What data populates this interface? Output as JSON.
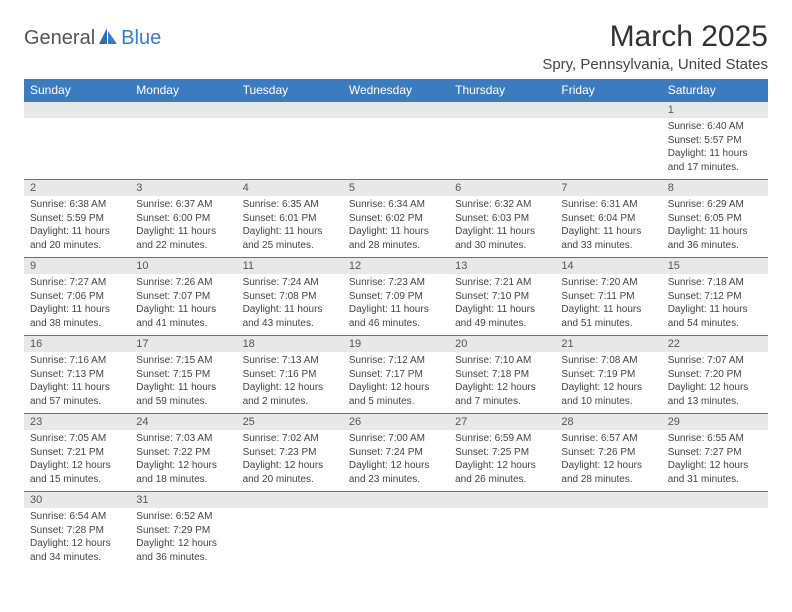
{
  "logo": {
    "part1": "General",
    "part2": "Blue"
  },
  "title": "March 2025",
  "location": "Spry, Pennsylvania, United States",
  "colors": {
    "header_bg": "#3b7bbf",
    "header_text": "#ffffff",
    "daynum_bg": "#e8e8e8",
    "border": "#3b7bbf",
    "logo_blue": "#3b7bbf",
    "logo_gray": "#555555"
  },
  "weekdays": [
    "Sunday",
    "Monday",
    "Tuesday",
    "Wednesday",
    "Thursday",
    "Friday",
    "Saturday"
  ],
  "weeks": [
    [
      null,
      null,
      null,
      null,
      null,
      null,
      {
        "n": "1",
        "sr": "Sunrise: 6:40 AM",
        "ss": "Sunset: 5:57 PM",
        "d1": "Daylight: 11 hours",
        "d2": "and 17 minutes."
      }
    ],
    [
      {
        "n": "2",
        "sr": "Sunrise: 6:38 AM",
        "ss": "Sunset: 5:59 PM",
        "d1": "Daylight: 11 hours",
        "d2": "and 20 minutes."
      },
      {
        "n": "3",
        "sr": "Sunrise: 6:37 AM",
        "ss": "Sunset: 6:00 PM",
        "d1": "Daylight: 11 hours",
        "d2": "and 22 minutes."
      },
      {
        "n": "4",
        "sr": "Sunrise: 6:35 AM",
        "ss": "Sunset: 6:01 PM",
        "d1": "Daylight: 11 hours",
        "d2": "and 25 minutes."
      },
      {
        "n": "5",
        "sr": "Sunrise: 6:34 AM",
        "ss": "Sunset: 6:02 PM",
        "d1": "Daylight: 11 hours",
        "d2": "and 28 minutes."
      },
      {
        "n": "6",
        "sr": "Sunrise: 6:32 AM",
        "ss": "Sunset: 6:03 PM",
        "d1": "Daylight: 11 hours",
        "d2": "and 30 minutes."
      },
      {
        "n": "7",
        "sr": "Sunrise: 6:31 AM",
        "ss": "Sunset: 6:04 PM",
        "d1": "Daylight: 11 hours",
        "d2": "and 33 minutes."
      },
      {
        "n": "8",
        "sr": "Sunrise: 6:29 AM",
        "ss": "Sunset: 6:05 PM",
        "d1": "Daylight: 11 hours",
        "d2": "and 36 minutes."
      }
    ],
    [
      {
        "n": "9",
        "sr": "Sunrise: 7:27 AM",
        "ss": "Sunset: 7:06 PM",
        "d1": "Daylight: 11 hours",
        "d2": "and 38 minutes."
      },
      {
        "n": "10",
        "sr": "Sunrise: 7:26 AM",
        "ss": "Sunset: 7:07 PM",
        "d1": "Daylight: 11 hours",
        "d2": "and 41 minutes."
      },
      {
        "n": "11",
        "sr": "Sunrise: 7:24 AM",
        "ss": "Sunset: 7:08 PM",
        "d1": "Daylight: 11 hours",
        "d2": "and 43 minutes."
      },
      {
        "n": "12",
        "sr": "Sunrise: 7:23 AM",
        "ss": "Sunset: 7:09 PM",
        "d1": "Daylight: 11 hours",
        "d2": "and 46 minutes."
      },
      {
        "n": "13",
        "sr": "Sunrise: 7:21 AM",
        "ss": "Sunset: 7:10 PM",
        "d1": "Daylight: 11 hours",
        "d2": "and 49 minutes."
      },
      {
        "n": "14",
        "sr": "Sunrise: 7:20 AM",
        "ss": "Sunset: 7:11 PM",
        "d1": "Daylight: 11 hours",
        "d2": "and 51 minutes."
      },
      {
        "n": "15",
        "sr": "Sunrise: 7:18 AM",
        "ss": "Sunset: 7:12 PM",
        "d1": "Daylight: 11 hours",
        "d2": "and 54 minutes."
      }
    ],
    [
      {
        "n": "16",
        "sr": "Sunrise: 7:16 AM",
        "ss": "Sunset: 7:13 PM",
        "d1": "Daylight: 11 hours",
        "d2": "and 57 minutes."
      },
      {
        "n": "17",
        "sr": "Sunrise: 7:15 AM",
        "ss": "Sunset: 7:15 PM",
        "d1": "Daylight: 11 hours",
        "d2": "and 59 minutes."
      },
      {
        "n": "18",
        "sr": "Sunrise: 7:13 AM",
        "ss": "Sunset: 7:16 PM",
        "d1": "Daylight: 12 hours",
        "d2": "and 2 minutes."
      },
      {
        "n": "19",
        "sr": "Sunrise: 7:12 AM",
        "ss": "Sunset: 7:17 PM",
        "d1": "Daylight: 12 hours",
        "d2": "and 5 minutes."
      },
      {
        "n": "20",
        "sr": "Sunrise: 7:10 AM",
        "ss": "Sunset: 7:18 PM",
        "d1": "Daylight: 12 hours",
        "d2": "and 7 minutes."
      },
      {
        "n": "21",
        "sr": "Sunrise: 7:08 AM",
        "ss": "Sunset: 7:19 PM",
        "d1": "Daylight: 12 hours",
        "d2": "and 10 minutes."
      },
      {
        "n": "22",
        "sr": "Sunrise: 7:07 AM",
        "ss": "Sunset: 7:20 PM",
        "d1": "Daylight: 12 hours",
        "d2": "and 13 minutes."
      }
    ],
    [
      {
        "n": "23",
        "sr": "Sunrise: 7:05 AM",
        "ss": "Sunset: 7:21 PM",
        "d1": "Daylight: 12 hours",
        "d2": "and 15 minutes."
      },
      {
        "n": "24",
        "sr": "Sunrise: 7:03 AM",
        "ss": "Sunset: 7:22 PM",
        "d1": "Daylight: 12 hours",
        "d2": "and 18 minutes."
      },
      {
        "n": "25",
        "sr": "Sunrise: 7:02 AM",
        "ss": "Sunset: 7:23 PM",
        "d1": "Daylight: 12 hours",
        "d2": "and 20 minutes."
      },
      {
        "n": "26",
        "sr": "Sunrise: 7:00 AM",
        "ss": "Sunset: 7:24 PM",
        "d1": "Daylight: 12 hours",
        "d2": "and 23 minutes."
      },
      {
        "n": "27",
        "sr": "Sunrise: 6:59 AM",
        "ss": "Sunset: 7:25 PM",
        "d1": "Daylight: 12 hours",
        "d2": "and 26 minutes."
      },
      {
        "n": "28",
        "sr": "Sunrise: 6:57 AM",
        "ss": "Sunset: 7:26 PM",
        "d1": "Daylight: 12 hours",
        "d2": "and 28 minutes."
      },
      {
        "n": "29",
        "sr": "Sunrise: 6:55 AM",
        "ss": "Sunset: 7:27 PM",
        "d1": "Daylight: 12 hours",
        "d2": "and 31 minutes."
      }
    ],
    [
      {
        "n": "30",
        "sr": "Sunrise: 6:54 AM",
        "ss": "Sunset: 7:28 PM",
        "d1": "Daylight: 12 hours",
        "d2": "and 34 minutes."
      },
      {
        "n": "31",
        "sr": "Sunrise: 6:52 AM",
        "ss": "Sunset: 7:29 PM",
        "d1": "Daylight: 12 hours",
        "d2": "and 36 minutes."
      },
      null,
      null,
      null,
      null,
      null
    ]
  ]
}
